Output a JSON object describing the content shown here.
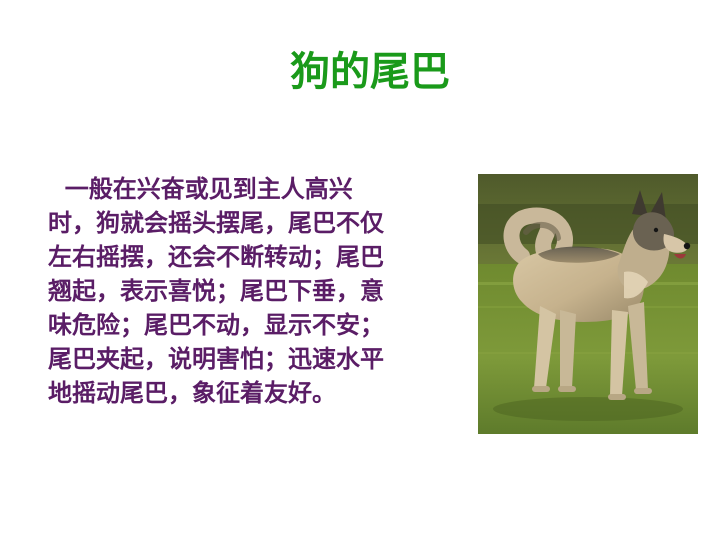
{
  "slide": {
    "title": "狗的尾巴",
    "body_lines": [
      "  一般在兴奋或见到主人高兴",
      "时，狗就会摇头摆尾，尾巴不仅",
      "左右摇摆，还会不断转动；尾巴",
      "翘起，表示喜悦；尾巴下垂，意",
      "味危险；尾巴不动，显示不安；",
      "尾巴夹起，说明害怕；迅速水平",
      "地摇动尾巴，象征着友好。"
    ]
  },
  "colors": {
    "title": "#1a9a1a",
    "body_text": "#5a1d66",
    "background": "#ffffff"
  },
  "image": {
    "icon": "dog-photo"
  }
}
